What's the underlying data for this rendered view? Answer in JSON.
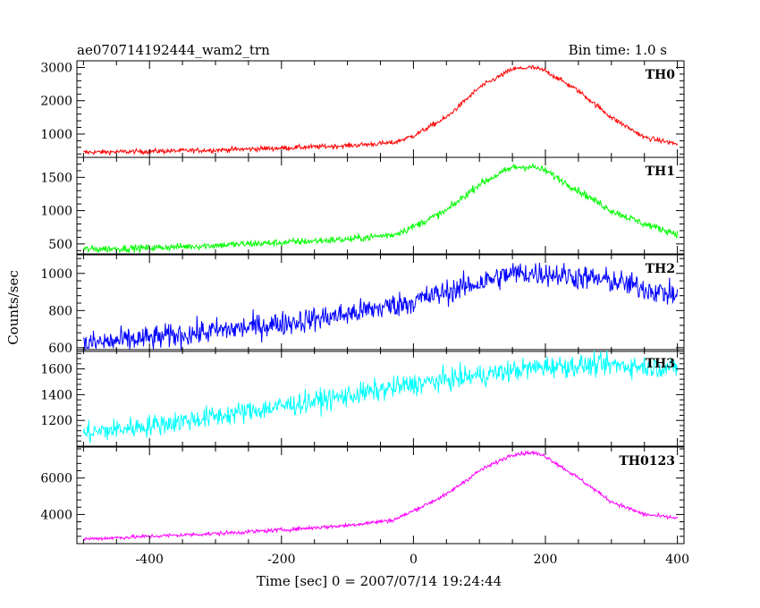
{
  "chart_data": {
    "type": "line",
    "title": "ae070714192444_wam2_trn",
    "bin_time": "Bin time: 1.0 s",
    "xlabel": "Time [sec] 0 = 2007/07/14 19:24:44",
    "ylabel": "Counts/sec",
    "xlim": [
      -510,
      410
    ],
    "xticks": [
      -400,
      -200,
      0,
      200,
      400
    ],
    "panels": [
      {
        "name": "TH0",
        "color": "#ff0000",
        "ylim": [
          300,
          3200
        ],
        "yticks": [
          1000,
          2000,
          3000
        ],
        "x": [
          -500,
          -400,
          -300,
          -200,
          -100,
          -30,
          0,
          50,
          100,
          150,
          180,
          200,
          250,
          300,
          350,
          400
        ],
        "y": [
          450,
          480,
          520,
          580,
          650,
          740,
          950,
          1500,
          2400,
          2950,
          3000,
          2900,
          2300,
          1500,
          900,
          700
        ],
        "noise": 60
      },
      {
        "name": "TH1",
        "color": "#00ff00",
        "ylim": [
          350,
          1800
        ],
        "yticks": [
          500,
          1000,
          1500
        ],
        "x": [
          -500,
          -400,
          -300,
          -200,
          -100,
          -30,
          0,
          50,
          100,
          150,
          180,
          200,
          250,
          300,
          350,
          400
        ],
        "y": [
          420,
          440,
          480,
          520,
          570,
          640,
          760,
          1000,
          1400,
          1650,
          1660,
          1600,
          1300,
          1000,
          800,
          650
        ],
        "noise": 45
      },
      {
        "name": "TH2",
        "color": "#0000ff",
        "ylim": [
          580,
          1100
        ],
        "yticks": [
          600,
          800,
          1000
        ],
        "x": [
          -500,
          -400,
          -300,
          -200,
          -100,
          0,
          100,
          150,
          200,
          250,
          300,
          350,
          400
        ],
        "y": [
          620,
          650,
          690,
          730,
          780,
          850,
          950,
          1000,
          1000,
          980,
          960,
          920,
          880
        ],
        "noise": 55
      },
      {
        "name": "TH3",
        "color": "#00ffff",
        "ylim": [
          1000,
          1750
        ],
        "yticks": [
          1200,
          1400,
          1600
        ],
        "x": [
          -500,
          -400,
          -300,
          -200,
          -100,
          0,
          100,
          200,
          300,
          400
        ],
        "y": [
          1100,
          1160,
          1230,
          1310,
          1390,
          1480,
          1550,
          1620,
          1630,
          1610
        ],
        "noise": 70
      },
      {
        "name": "TH0123",
        "color": "#ff00ff",
        "ylim": [
          2400,
          7700
        ],
        "yticks": [
          4000,
          6000
        ],
        "x": [
          -500,
          -400,
          -300,
          -200,
          -100,
          -30,
          0,
          50,
          100,
          150,
          180,
          200,
          250,
          300,
          350,
          400
        ],
        "y": [
          2650,
          2800,
          2950,
          3150,
          3400,
          3700,
          4200,
          5100,
          6400,
          7300,
          7400,
          7200,
          6000,
          4700,
          4000,
          3800
        ],
        "noise": 90
      }
    ]
  }
}
